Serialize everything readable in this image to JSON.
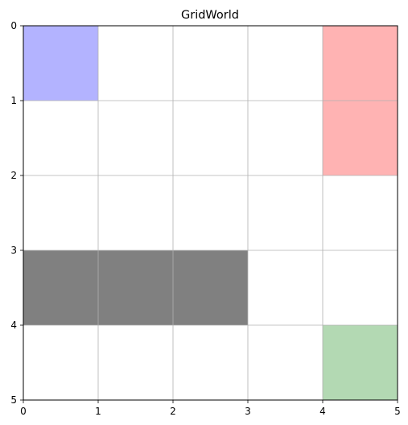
{
  "title": "GridWorld",
  "grid": {
    "cols": 5,
    "rows": 5,
    "x_ticks": [
      "0",
      "1",
      "2",
      "3",
      "4",
      "5"
    ],
    "y_ticks": [
      "0",
      "1",
      "2",
      "3",
      "4",
      "5"
    ],
    "grid_visible": true,
    "y_axis_inverted": true
  },
  "cells": [
    {
      "id": "agent",
      "col": 0,
      "row": 0,
      "color": "#b3b3ff"
    },
    {
      "id": "hazard",
      "col": 4,
      "row": 0,
      "color": "#ffb3b3"
    },
    {
      "id": "hazard",
      "col": 4,
      "row": 1,
      "color": "#ffb3b3"
    },
    {
      "id": "wall",
      "col": 0,
      "row": 3,
      "color": "#808080"
    },
    {
      "id": "wall",
      "col": 1,
      "row": 3,
      "color": "#808080"
    },
    {
      "id": "wall",
      "col": 2,
      "row": 3,
      "color": "#808080"
    },
    {
      "id": "goal",
      "col": 4,
      "row": 4,
      "color": "#b3d9b3"
    }
  ]
}
